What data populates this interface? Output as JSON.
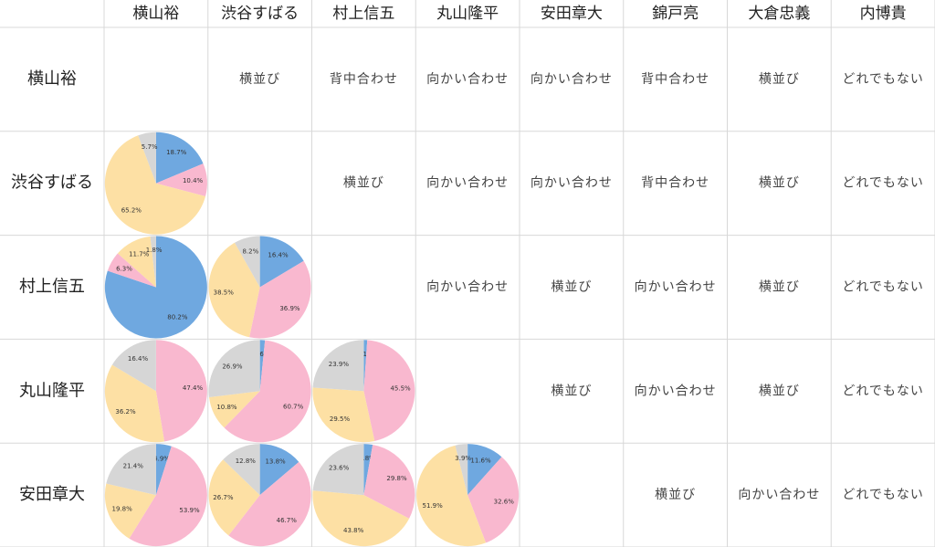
{
  "table": {
    "columns": [
      "横山裕",
      "渋谷すばる",
      "村上信五",
      "丸山隆平",
      "安田章大",
      "錦戸亮",
      "大倉忠義",
      "内博貴"
    ],
    "rows": [
      {
        "label": "横山裕",
        "cells": [
          null,
          "横並び",
          "背中合わせ",
          "向かい合わせ",
          "向かい合わせ",
          "背中合わせ",
          "横並び",
          "どれでもない"
        ]
      },
      {
        "label": "渋谷すばる",
        "cells": [
          {
            "values": [
              18.7,
              10.4,
              65.2,
              5.7
            ],
            "value_labels": [
              "18.7%",
              "10.4%",
              "65.2%",
              "5.7%"
            ],
            "colors": [
              "#6fa8e0",
              "#f9b8cf",
              "#fde0a4",
              "#d6d6d6"
            ]
          },
          null,
          "横並び",
          "向かい合わせ",
          "向かい合わせ",
          "背中合わせ",
          "横並び",
          "どれでもない"
        ]
      },
      {
        "label": "村上信五",
        "cells": [
          {
            "values": [
              80.2,
              6.3,
              11.7,
              1.8
            ],
            "value_labels": [
              "80.2%",
              "6.3%",
              "11.7%",
              "1.8%"
            ],
            "colors": [
              "#6fa8e0",
              "#f9b8cf",
              "#fde0a4",
              "#d6d6d6"
            ]
          },
          {
            "values": [
              16.4,
              36.9,
              38.5,
              8.2
            ],
            "value_labels": [
              "16.4%",
              "36.9%",
              "38.5%",
              "8.2%"
            ],
            "colors": [
              "#6fa8e0",
              "#f9b8cf",
              "#fde0a4",
              "#d6d6d6"
            ]
          },
          null,
          "向かい合わせ",
          "横並び",
          "向かい合わせ",
          "横並び",
          "どれでもない"
        ]
      },
      {
        "label": "丸山隆平",
        "cells": [
          {
            "values": [
              47.4,
              36.2,
              16.4
            ],
            "value_labels": [
              "47.4%",
              "36.2%",
              "16.4%"
            ],
            "colors": [
              "#f9b8cf",
              "#fde0a4",
              "#d6d6d6"
            ]
          },
          {
            "values": [
              1.6,
              60.7,
              10.8,
              26.9
            ],
            "value_labels": [
              "1.6%",
              "60.7%",
              "10.8%",
              "26.9%"
            ],
            "colors": [
              "#6fa8e0",
              "#f9b8cf",
              "#fde0a4",
              "#d6d6d6"
            ]
          },
          {
            "values": [
              1.1,
              45.5,
              29.5,
              23.9
            ],
            "value_labels": [
              "1.1%",
              "45.5%",
              "29.5%",
              "23.9%"
            ],
            "colors": [
              "#6fa8e0",
              "#f9b8cf",
              "#fde0a4",
              "#d6d6d6"
            ]
          },
          null,
          "横並び",
          "向かい合わせ",
          "横並び",
          "どれでもない"
        ]
      },
      {
        "label": "安田章大",
        "cells": [
          {
            "values": [
              4.9,
              53.9,
              19.8,
              21.4
            ],
            "value_labels": [
              "4.9%",
              "53.9%",
              "19.8%",
              "21.4%"
            ],
            "colors": [
              "#6fa8e0",
              "#f9b8cf",
              "#fde0a4",
              "#d6d6d6"
            ]
          },
          {
            "values": [
              13.8,
              46.7,
              26.7,
              12.8
            ],
            "value_labels": [
              "13.8%",
              "46.7%",
              "26.7%",
              "12.8%"
            ],
            "colors": [
              "#6fa8e0",
              "#f9b8cf",
              "#fde0a4",
              "#d6d6d6"
            ]
          },
          {
            "values": [
              2.8,
              29.8,
              43.8,
              23.6
            ],
            "value_labels": [
              "2.8%",
              "29.8%",
              "43.8%",
              "23.6%"
            ],
            "colors": [
              "#6fa8e0",
              "#f9b8cf",
              "#fde0a4",
              "#d6d6d6"
            ]
          },
          {
            "values": [
              11.6,
              32.6,
              51.9,
              3.9
            ],
            "value_labels": [
              "11.6%",
              "32.6%",
              "51.9%",
              "3.9%"
            ],
            "colors": [
              "#6fa8e0",
              "#f9b8cf",
              "#fde0a4",
              "#d6d6d6"
            ]
          },
          null,
          "横並び",
          "向かい合わせ",
          "どれでもない"
        ]
      }
    ]
  }
}
